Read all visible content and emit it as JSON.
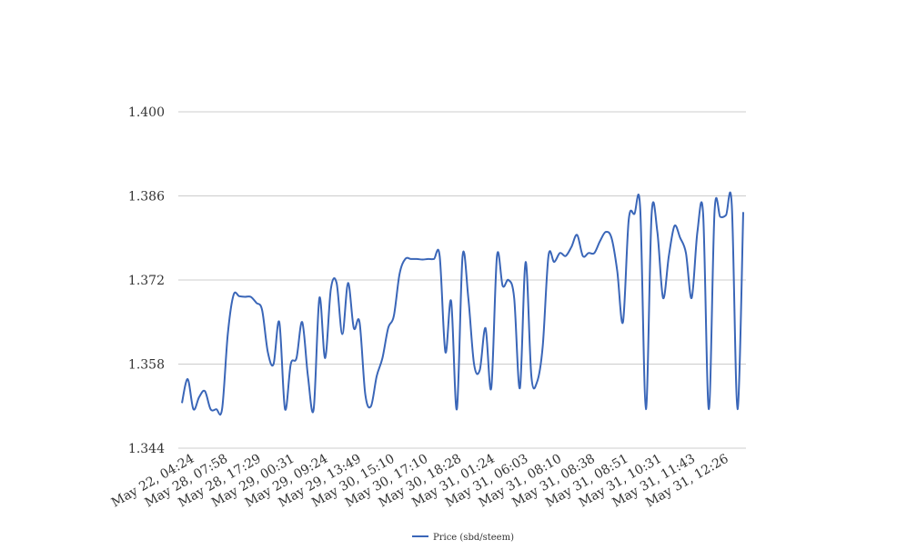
{
  "chart_data": {
    "type": "line",
    "title": "",
    "xlabel": "",
    "ylabel": "",
    "ylim": [
      1.344,
      1.4
    ],
    "y_ticks": [
      "1.400",
      "1.386",
      "1.372",
      "1.358",
      "1.344"
    ],
    "y_tick_values": [
      1.4,
      1.386,
      1.372,
      1.358,
      1.344
    ],
    "x_tick_labels": [
      "May 22, 04:24",
      "May 28, 07:58",
      "May 28, 17:29",
      "May 29, 00:31",
      "May 29, 09:24",
      "May 29, 13:49",
      "May 30, 15:10",
      "May 30, 17:10",
      "May 30, 18:28",
      "May 31, 01:24",
      "May 31, 06:03",
      "May 31, 08:10",
      "May 31, 08:38",
      "May 31, 08:51",
      "May 31, 10:31",
      "May 31, 11:43",
      "May 31, 12:26"
    ],
    "grid": true,
    "legend": "bottom-center",
    "colors": {
      "series": "#3a66b8",
      "grid": "#cccccc"
    },
    "series": [
      {
        "name": "Price (sbd/steem)",
        "values": [
          1.3515,
          1.3555,
          1.3505,
          1.3525,
          1.3535,
          1.3505,
          1.3505,
          1.3505,
          1.363,
          1.3695,
          1.3693,
          1.3692,
          1.3692,
          1.3682,
          1.367,
          1.36,
          1.358,
          1.365,
          1.3505,
          1.358,
          1.359,
          1.365,
          1.356,
          1.3505,
          1.369,
          1.359,
          1.3705,
          1.3715,
          1.363,
          1.3715,
          1.364,
          1.365,
          1.353,
          1.351,
          1.356,
          1.359,
          1.364,
          1.366,
          1.373,
          1.3755,
          1.3755,
          1.3755,
          1.3754,
          1.3755,
          1.3755,
          1.376,
          1.36,
          1.3685,
          1.3505,
          1.376,
          1.369,
          1.358,
          1.357,
          1.364,
          1.354,
          1.376,
          1.371,
          1.372,
          1.369,
          1.354,
          1.375,
          1.356,
          1.355,
          1.361,
          1.376,
          1.375,
          1.3765,
          1.376,
          1.3775,
          1.3795,
          1.376,
          1.3765,
          1.3765,
          1.3785,
          1.38,
          1.379,
          1.3735,
          1.365,
          1.382,
          1.383,
          1.384,
          1.3505,
          1.383,
          1.38,
          1.369,
          1.376,
          1.381,
          1.379,
          1.3765,
          1.369,
          1.38,
          1.383,
          1.3505,
          1.3835,
          1.3825,
          1.3828,
          1.3845,
          1.3505,
          1.3833
        ]
      }
    ]
  }
}
